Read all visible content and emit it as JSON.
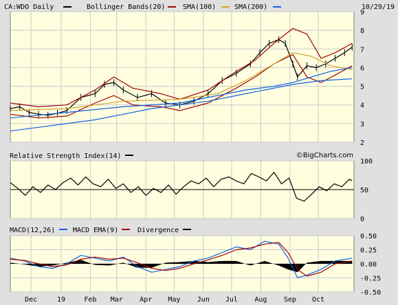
{
  "header": {
    "symbol_label": "CA:WDO Daily",
    "bollinger_label": "Bollinger Bands(20)",
    "sma100_label": "SMA(100)",
    "sma200_label": "SMA(200)",
    "date": "10/29/19"
  },
  "colors": {
    "background": "#e0e0e0",
    "plot_bg": "#ffffe0",
    "grid": "#c8c8c8",
    "price": "#000000",
    "bollinger": "#a00000",
    "sma100": "#d4a030",
    "sma200": "#1060e0",
    "macd": "#1060e0",
    "macd_ema": "#a00000",
    "divergence": "#000000"
  },
  "chart_data": [
    {
      "type": "line",
      "panel": "price",
      "y_ticks": [
        2,
        3,
        4,
        5,
        6,
        7,
        8,
        9
      ],
      "ylim": [
        2,
        9
      ],
      "x_labels": [
        "Dec",
        "19",
        "Feb",
        "Mar",
        "Apr",
        "May",
        "Jun",
        "Jul",
        "Aug",
        "Sep",
        "Oct"
      ],
      "x_label_days": [
        22,
        54,
        85,
        113,
        144,
        174,
        205,
        235,
        266,
        297,
        327
      ],
      "days": 365,
      "series": [
        {
          "name": "CA:WDO Daily",
          "role": "price",
          "x": [
            0,
            10,
            20,
            30,
            40,
            50,
            60,
            75,
            90,
            100,
            110,
            120,
            135,
            150,
            165,
            180,
            195,
            210,
            225,
            240,
            255,
            265,
            275,
            285,
            292,
            300,
            305,
            315,
            325,
            335,
            345,
            355,
            363
          ],
          "y": [
            3.8,
            3.9,
            3.6,
            3.5,
            3.45,
            3.55,
            3.7,
            4.4,
            4.6,
            5.1,
            5.2,
            4.8,
            4.4,
            4.6,
            4.1,
            4.0,
            4.2,
            4.6,
            5.3,
            5.7,
            6.2,
            6.8,
            7.3,
            7.5,
            7.3,
            6.2,
            5.5,
            6.1,
            6.0,
            6.2,
            6.5,
            6.8,
            7.1
          ]
        },
        {
          "name": "Bollinger Bands(20) upper",
          "x": [
            0,
            30,
            60,
            90,
            110,
            130,
            160,
            180,
            210,
            240,
            260,
            280,
            300,
            315,
            330,
            345,
            363
          ],
          "y": [
            4.1,
            3.9,
            4.0,
            4.8,
            5.5,
            4.9,
            4.6,
            4.3,
            4.8,
            5.8,
            6.4,
            7.3,
            8.1,
            7.8,
            6.5,
            6.8,
            7.3
          ]
        },
        {
          "name": "Bollinger Bands(20) lower",
          "x": [
            0,
            30,
            60,
            90,
            110,
            130,
            160,
            180,
            210,
            240,
            260,
            280,
            300,
            315,
            330,
            345,
            363
          ],
          "y": [
            3.5,
            3.3,
            3.4,
            4.1,
            4.5,
            4.0,
            3.9,
            3.7,
            4.1,
            4.9,
            5.5,
            6.2,
            6.7,
            5.5,
            5.2,
            5.6,
            6.1
          ]
        },
        {
          "name": "SMA(100)",
          "x": [
            0,
            60,
            120,
            180,
            220,
            250,
            280,
            300,
            320,
            340,
            363
          ],
          "y": [
            3.7,
            3.8,
            4.2,
            4.3,
            4.6,
            5.3,
            6.2,
            6.8,
            6.6,
            6.1,
            5.9
          ]
        },
        {
          "name": "SMA(200)",
          "x": [
            0,
            60,
            120,
            180,
            220,
            250,
            280,
            300,
            320,
            340,
            363
          ],
          "y": [
            3.3,
            3.6,
            3.9,
            4.1,
            4.5,
            4.8,
            5.0,
            5.2,
            5.5,
            5.8,
            6.0
          ]
        },
        {
          "name": "SMA(200) long",
          "role": "sma200",
          "x": [
            0,
            30,
            60,
            90,
            120,
            150,
            180,
            210,
            240,
            270,
            300,
            330,
            363
          ],
          "y": [
            2.6,
            2.8,
            3.0,
            3.2,
            3.5,
            3.8,
            4.0,
            4.2,
            4.5,
            4.8,
            5.1,
            5.3,
            5.4
          ]
        }
      ]
    },
    {
      "type": "line",
      "panel": "rsi",
      "title": "Relative Strength Index(14)",
      "watermark": "©BigCharts.com",
      "y_ticks": [
        0,
        50,
        100
      ],
      "ylim": [
        0,
        100
      ],
      "reference_line": 50,
      "series": [
        {
          "name": "Relative Strength Index(14)",
          "x": [
            0,
            8,
            16,
            24,
            32,
            40,
            48,
            56,
            64,
            72,
            80,
            88,
            96,
            104,
            112,
            120,
            128,
            136,
            144,
            152,
            160,
            168,
            176,
            184,
            192,
            200,
            208,
            216,
            224,
            232,
            240,
            248,
            256,
            264,
            272,
            280,
            288,
            296,
            304,
            312,
            320,
            328,
            336,
            344,
            352,
            360,
            363
          ],
          "y": [
            62,
            52,
            40,
            55,
            45,
            58,
            50,
            62,
            70,
            58,
            72,
            60,
            55,
            68,
            52,
            60,
            45,
            55,
            40,
            52,
            45,
            58,
            42,
            55,
            65,
            60,
            70,
            55,
            68,
            72,
            65,
            60,
            78,
            72,
            65,
            80,
            60,
            70,
            35,
            30,
            42,
            55,
            48,
            60,
            55,
            68,
            65
          ]
        }
      ]
    },
    {
      "type": "line",
      "panel": "macd",
      "title": "MACD(12,26)",
      "y_ticks": [
        -0.5,
        -0.25,
        0.0,
        0.25,
        0.5
      ],
      "ylim": [
        -0.5,
        0.5
      ],
      "legend": [
        "MACD(12,26)",
        "MACD EMA(9)",
        "Divergence"
      ],
      "series": [
        {
          "name": "MACD(12,26)",
          "x": [
            0,
            15,
            30,
            45,
            60,
            75,
            90,
            105,
            120,
            135,
            150,
            165,
            180,
            195,
            210,
            225,
            240,
            255,
            270,
            285,
            295,
            305,
            315,
            330,
            345,
            363
          ],
          "y": [
            0.1,
            0.05,
            -0.05,
            -0.08,
            0.0,
            0.15,
            0.1,
            0.05,
            0.12,
            -0.05,
            -0.15,
            -0.1,
            -0.05,
            0.05,
            0.1,
            0.2,
            0.3,
            0.25,
            0.4,
            0.35,
            0.1,
            -0.25,
            -0.2,
            -0.1,
            0.05,
            0.1
          ]
        },
        {
          "name": "MACD EMA(9)",
          "x": [
            0,
            15,
            30,
            45,
            60,
            75,
            90,
            105,
            120,
            135,
            150,
            165,
            180,
            195,
            210,
            225,
            240,
            255,
            270,
            285,
            295,
            305,
            315,
            330,
            345,
            363
          ],
          "y": [
            0.08,
            0.06,
            0.0,
            -0.05,
            -0.02,
            0.08,
            0.12,
            0.08,
            0.1,
            0.02,
            -0.08,
            -0.12,
            -0.08,
            0.0,
            0.07,
            0.15,
            0.25,
            0.28,
            0.35,
            0.38,
            0.2,
            -0.1,
            -0.22,
            -0.15,
            0.0,
            0.05
          ]
        },
        {
          "name": "Divergence",
          "x": [
            0,
            15,
            30,
            45,
            60,
            75,
            90,
            105,
            120,
            135,
            150,
            165,
            180,
            195,
            210,
            225,
            240,
            255,
            270,
            285,
            295,
            305,
            315,
            330,
            345,
            363
          ],
          "y": [
            0.02,
            -0.01,
            -0.05,
            -0.03,
            0.02,
            0.07,
            -0.02,
            -0.03,
            0.02,
            -0.07,
            -0.07,
            0.02,
            0.03,
            0.05,
            0.03,
            0.05,
            0.05,
            -0.03,
            0.05,
            -0.03,
            -0.1,
            -0.15,
            0.02,
            0.05,
            0.05,
            0.05
          ]
        }
      ]
    }
  ]
}
